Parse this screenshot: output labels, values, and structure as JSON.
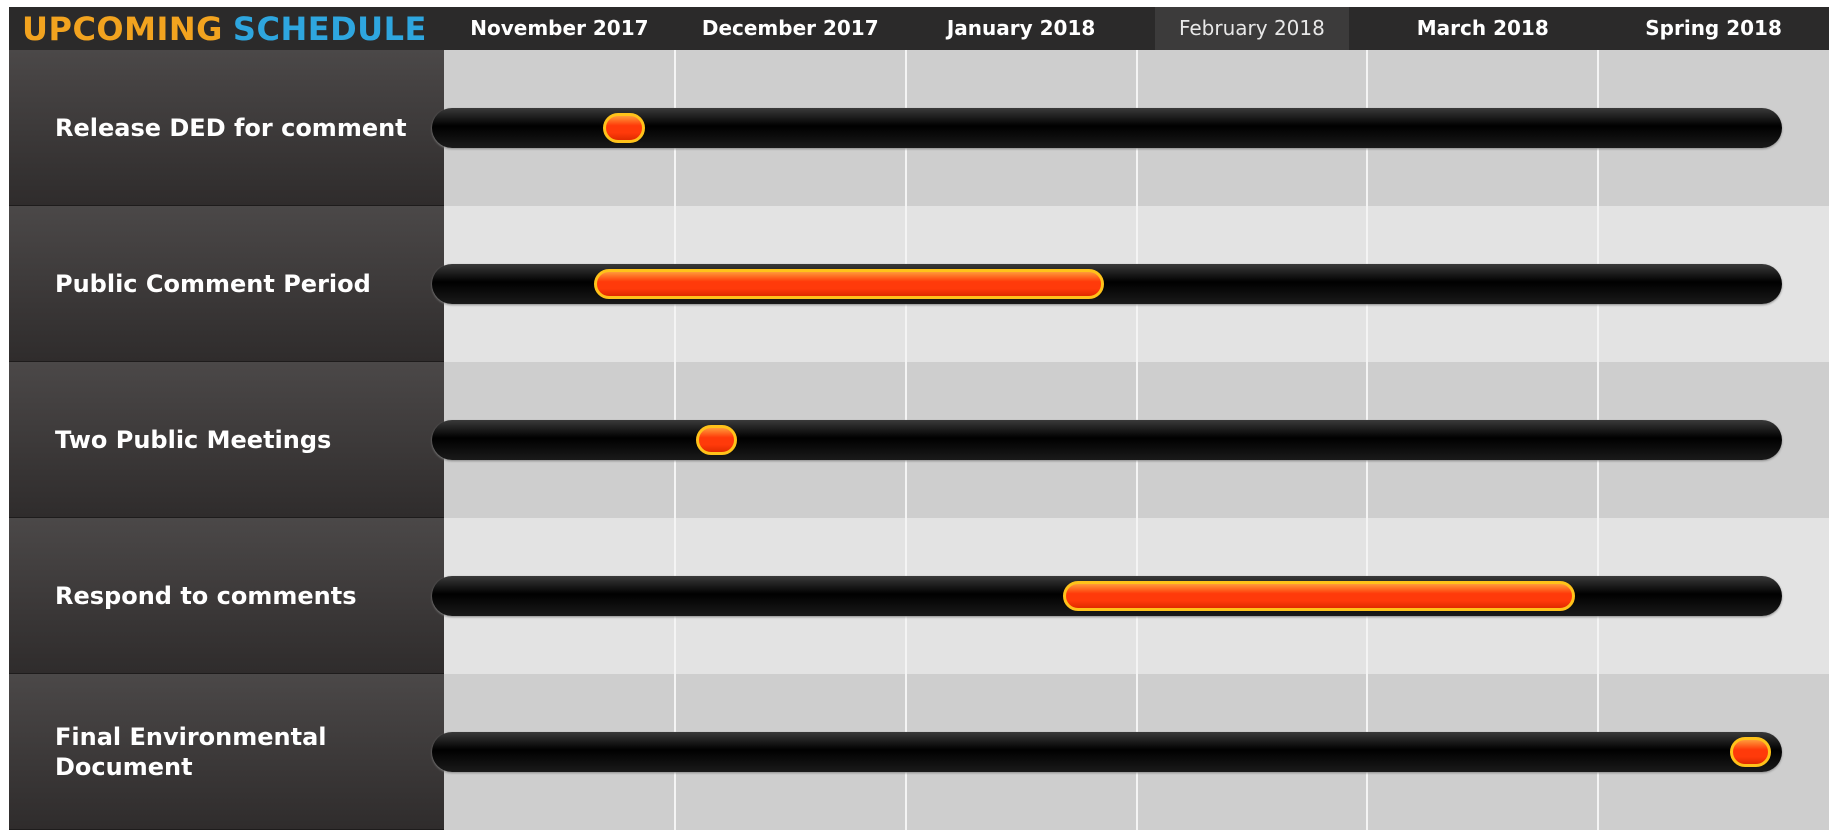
{
  "chart_data": {
    "type": "gantt",
    "title_parts": [
      {
        "text": "UPCOMING",
        "color": "#f2a31f"
      },
      {
        "text": "SCHEDULE",
        "color": "#2ea6df"
      }
    ],
    "periods": [
      "November 2017",
      "December 2017",
      "January 2018",
      "February 2018",
      "March 2018",
      "Spring 2018"
    ],
    "highlight_index": 3,
    "categories": [
      "Release DED for comment",
      "Public Comment Period",
      "Two Public Meetings",
      "Respond to comments",
      "Final Environmental Document"
    ],
    "starts": [
      0.69,
      0.65,
      1.09,
      2.68,
      5.57
    ],
    "ends": [
      0.87,
      2.86,
      1.27,
      4.9,
      5.75
    ],
    "xlim": [
      0,
      6
    ],
    "bar_color": "#ff3a0a",
    "bar_edge": "#ffc21a"
  }
}
